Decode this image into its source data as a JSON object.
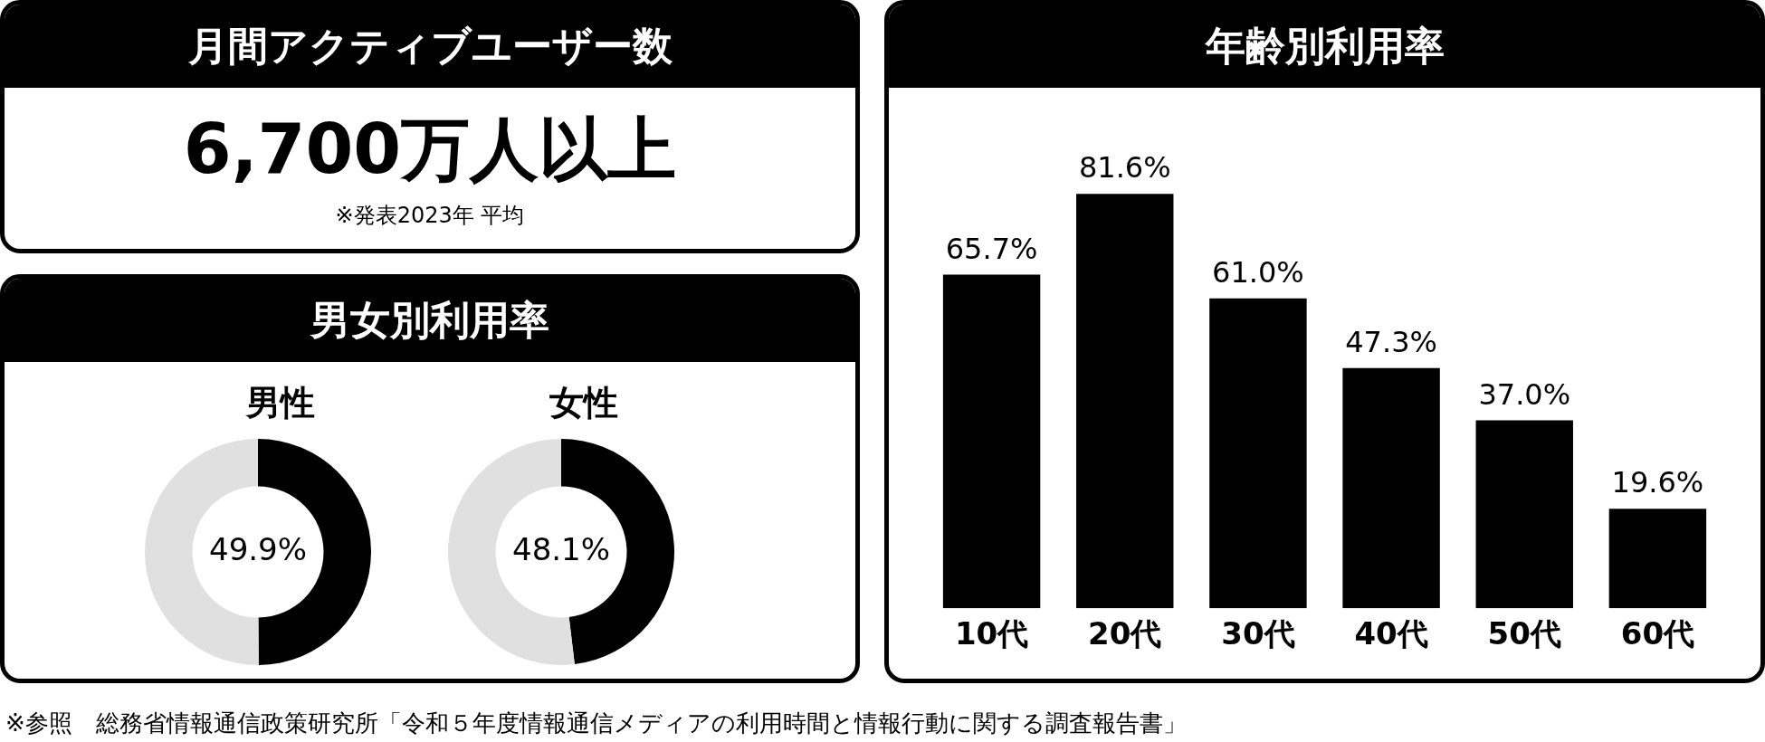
{
  "chart_data": [
    {
      "type": "other",
      "title": "月間アクティブユーザー数",
      "subtitle": "6,700万人以上",
      "annotations": [
        "※発表2023年 平均"
      ]
    },
    {
      "type": "other",
      "title": "男女別利用率"
    },
    {
      "type": "donut",
      "title": "男性",
      "categories": [
        null,
        null
      ],
      "values": [
        49.9,
        50.1
      ],
      "colors": [
        "#000000",
        "#e0e0e0"
      ],
      "value_labels": [
        "49.9%",
        null
      ]
    },
    {
      "type": "donut",
      "title": "女性",
      "categories": [
        null,
        null
      ],
      "values": [
        48.1,
        51.9
      ],
      "colors": [
        "#000000",
        "#e0e0e0"
      ],
      "value_labels": [
        "48.1%",
        null
      ]
    },
    {
      "type": "bar",
      "title": "年齢別利用率",
      "categories": [
        "10代",
        "20代",
        "30代",
        "40代",
        "50代",
        "60代"
      ],
      "values": [
        65.7,
        81.6,
        61.0,
        47.3,
        37.0,
        19.6
      ],
      "color": "#000000",
      "value_labels": [
        "65.7%",
        "81.6%",
        "61.0%",
        "47.3%",
        "37.0%",
        "19.6%"
      ],
      "annotations": [
        "※参照　総務省情報通信政策研究所「令和５年度情報通信メディアの利用時間と情報行動に関する調査報告書」"
      ]
    }
  ]
}
